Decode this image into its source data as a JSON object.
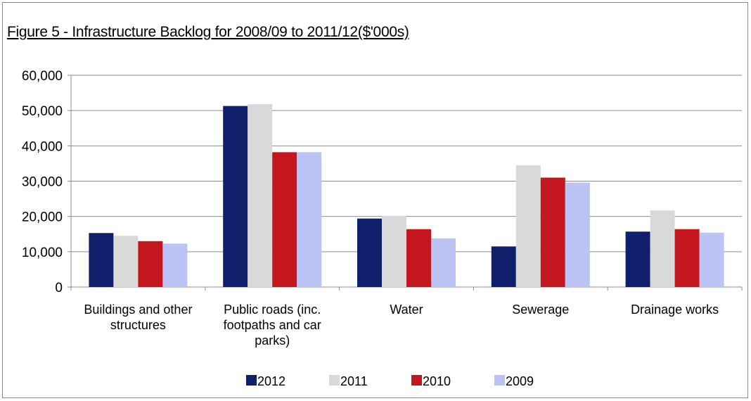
{
  "figure_title": "Figure 5 - Infrastructure Backlog for 2008/09 to 2011/12($'000s)",
  "chart_data": {
    "type": "bar",
    "title": "Figure 5 - Infrastructure Backlog for 2008/09 to 2011/12($'000s)",
    "xlabel": "",
    "ylabel": "",
    "ylim": [
      0,
      60000
    ],
    "y_ticks": [
      0,
      10000,
      20000,
      30000,
      40000,
      50000,
      60000
    ],
    "y_tick_labels": [
      "0",
      "10,000",
      "20,000",
      "30,000",
      "40,000",
      "50,000",
      "60,000"
    ],
    "grid": true,
    "legend_position": "bottom",
    "categories": [
      [
        "Buildings and other",
        "structures"
      ],
      [
        "Public roads (inc.",
        "footpaths and car",
        "parks)"
      ],
      [
        "Water"
      ],
      [
        "Sewerage"
      ],
      [
        "Drainage works"
      ]
    ],
    "series": [
      {
        "name": "2012",
        "color": "#0f1f6b",
        "values": [
          15300,
          51300,
          19400,
          11500,
          15700
        ]
      },
      {
        "name": "2011",
        "color": "#d9d9d9",
        "values": [
          14500,
          51800,
          20200,
          34500,
          21700
        ]
      },
      {
        "name": "2010",
        "color": "#c3161f",
        "values": [
          13000,
          38200,
          16400,
          31000,
          16400
        ]
      },
      {
        "name": "2009",
        "color": "#bcc3f5",
        "values": [
          12300,
          38200,
          13800,
          29600,
          15400
        ]
      }
    ]
  }
}
